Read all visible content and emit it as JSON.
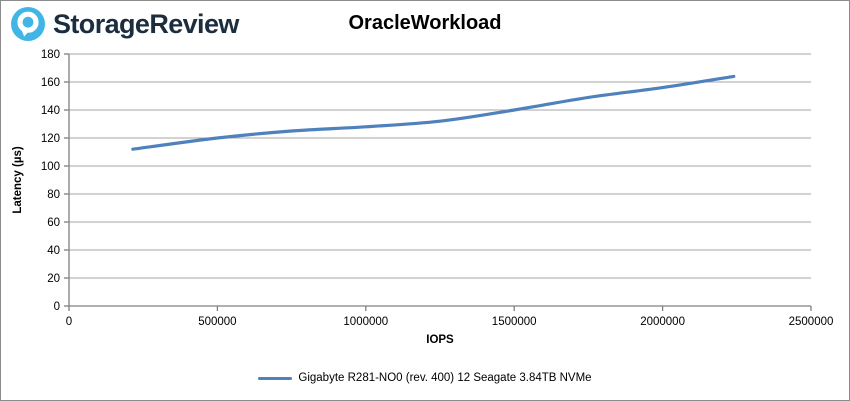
{
  "header": {
    "brand": "StorageReview",
    "logo_color": "#41b6e6",
    "brand_text_color": "#1b2d3e"
  },
  "chart": {
    "title": "OracleWorkload",
    "line_color": "#4f81bd",
    "gridline_color": "#a6a6a6",
    "axis_color": "#808080",
    "tick_label_color": "#000000"
  },
  "chart_data": {
    "type": "line",
    "title": "OracleWorkload",
    "xlabel": "IOPS",
    "ylabel": "Latency (µs)",
    "xlim": [
      0,
      2500000
    ],
    "ylim": [
      0,
      180
    ],
    "x_ticks": [
      0,
      500000,
      1000000,
      1500000,
      2000000,
      2500000
    ],
    "y_ticks": [
      0,
      20,
      40,
      60,
      80,
      100,
      120,
      140,
      160,
      180
    ],
    "grid": "horizontal",
    "legend_position": "bottom",
    "series": [
      {
        "name": "Gigabyte R281-NO0 (rev. 400) 12 Seagate 3.84TB NVMe",
        "color": "#4f81bd",
        "points": [
          [
            215000,
            112
          ],
          [
            500000,
            120
          ],
          [
            750000,
            125
          ],
          [
            1000000,
            128
          ],
          [
            1250000,
            132
          ],
          [
            1500000,
            140
          ],
          [
            1750000,
            149
          ],
          [
            2000000,
            156
          ],
          [
            2240000,
            164
          ]
        ]
      }
    ]
  }
}
